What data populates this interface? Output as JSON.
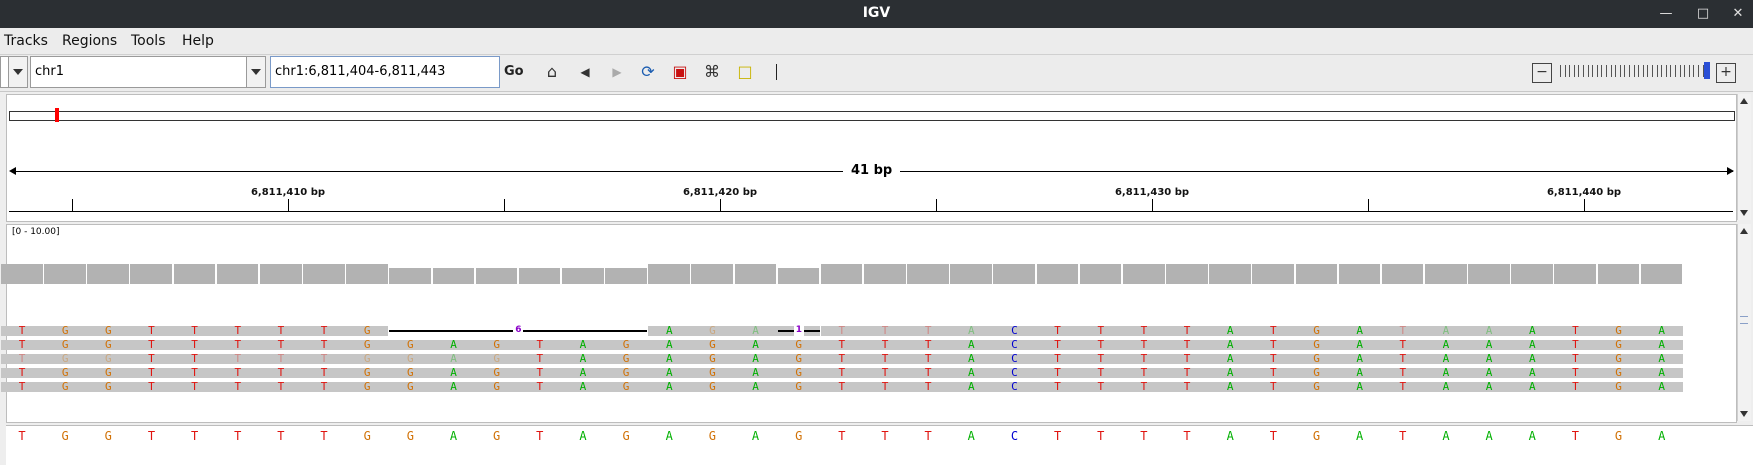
{
  "window": {
    "title": "IGV"
  },
  "menu": {
    "items": [
      "Tracks",
      "Regions",
      "Tools",
      "Help"
    ]
  },
  "toolbar": {
    "genome_value": "",
    "chromosome": "chr1",
    "locus": "chr1:6,811,404-6,811,443",
    "go_label": "Go"
  },
  "ruler": {
    "span_label": "41 bp",
    "ticks": [
      "6,811,410 bp",
      "6,811,420 bp",
      "6,811,430 bp",
      "6,811,440 bp"
    ]
  },
  "coverage": {
    "range_label": "[0 - 10.00]"
  },
  "reads": {
    "deletion_labels": [
      "6",
      "1"
    ]
  },
  "colors": {
    "A": "#00b000",
    "C": "#0000d0",
    "G": "#d17105",
    "T": "#e0140f",
    "deletion_label": "#8a00c8"
  },
  "reference_sequence": "TGGTTTTTGGAGTAGAGAGTTTACTTTTATGATAAATGA"
}
